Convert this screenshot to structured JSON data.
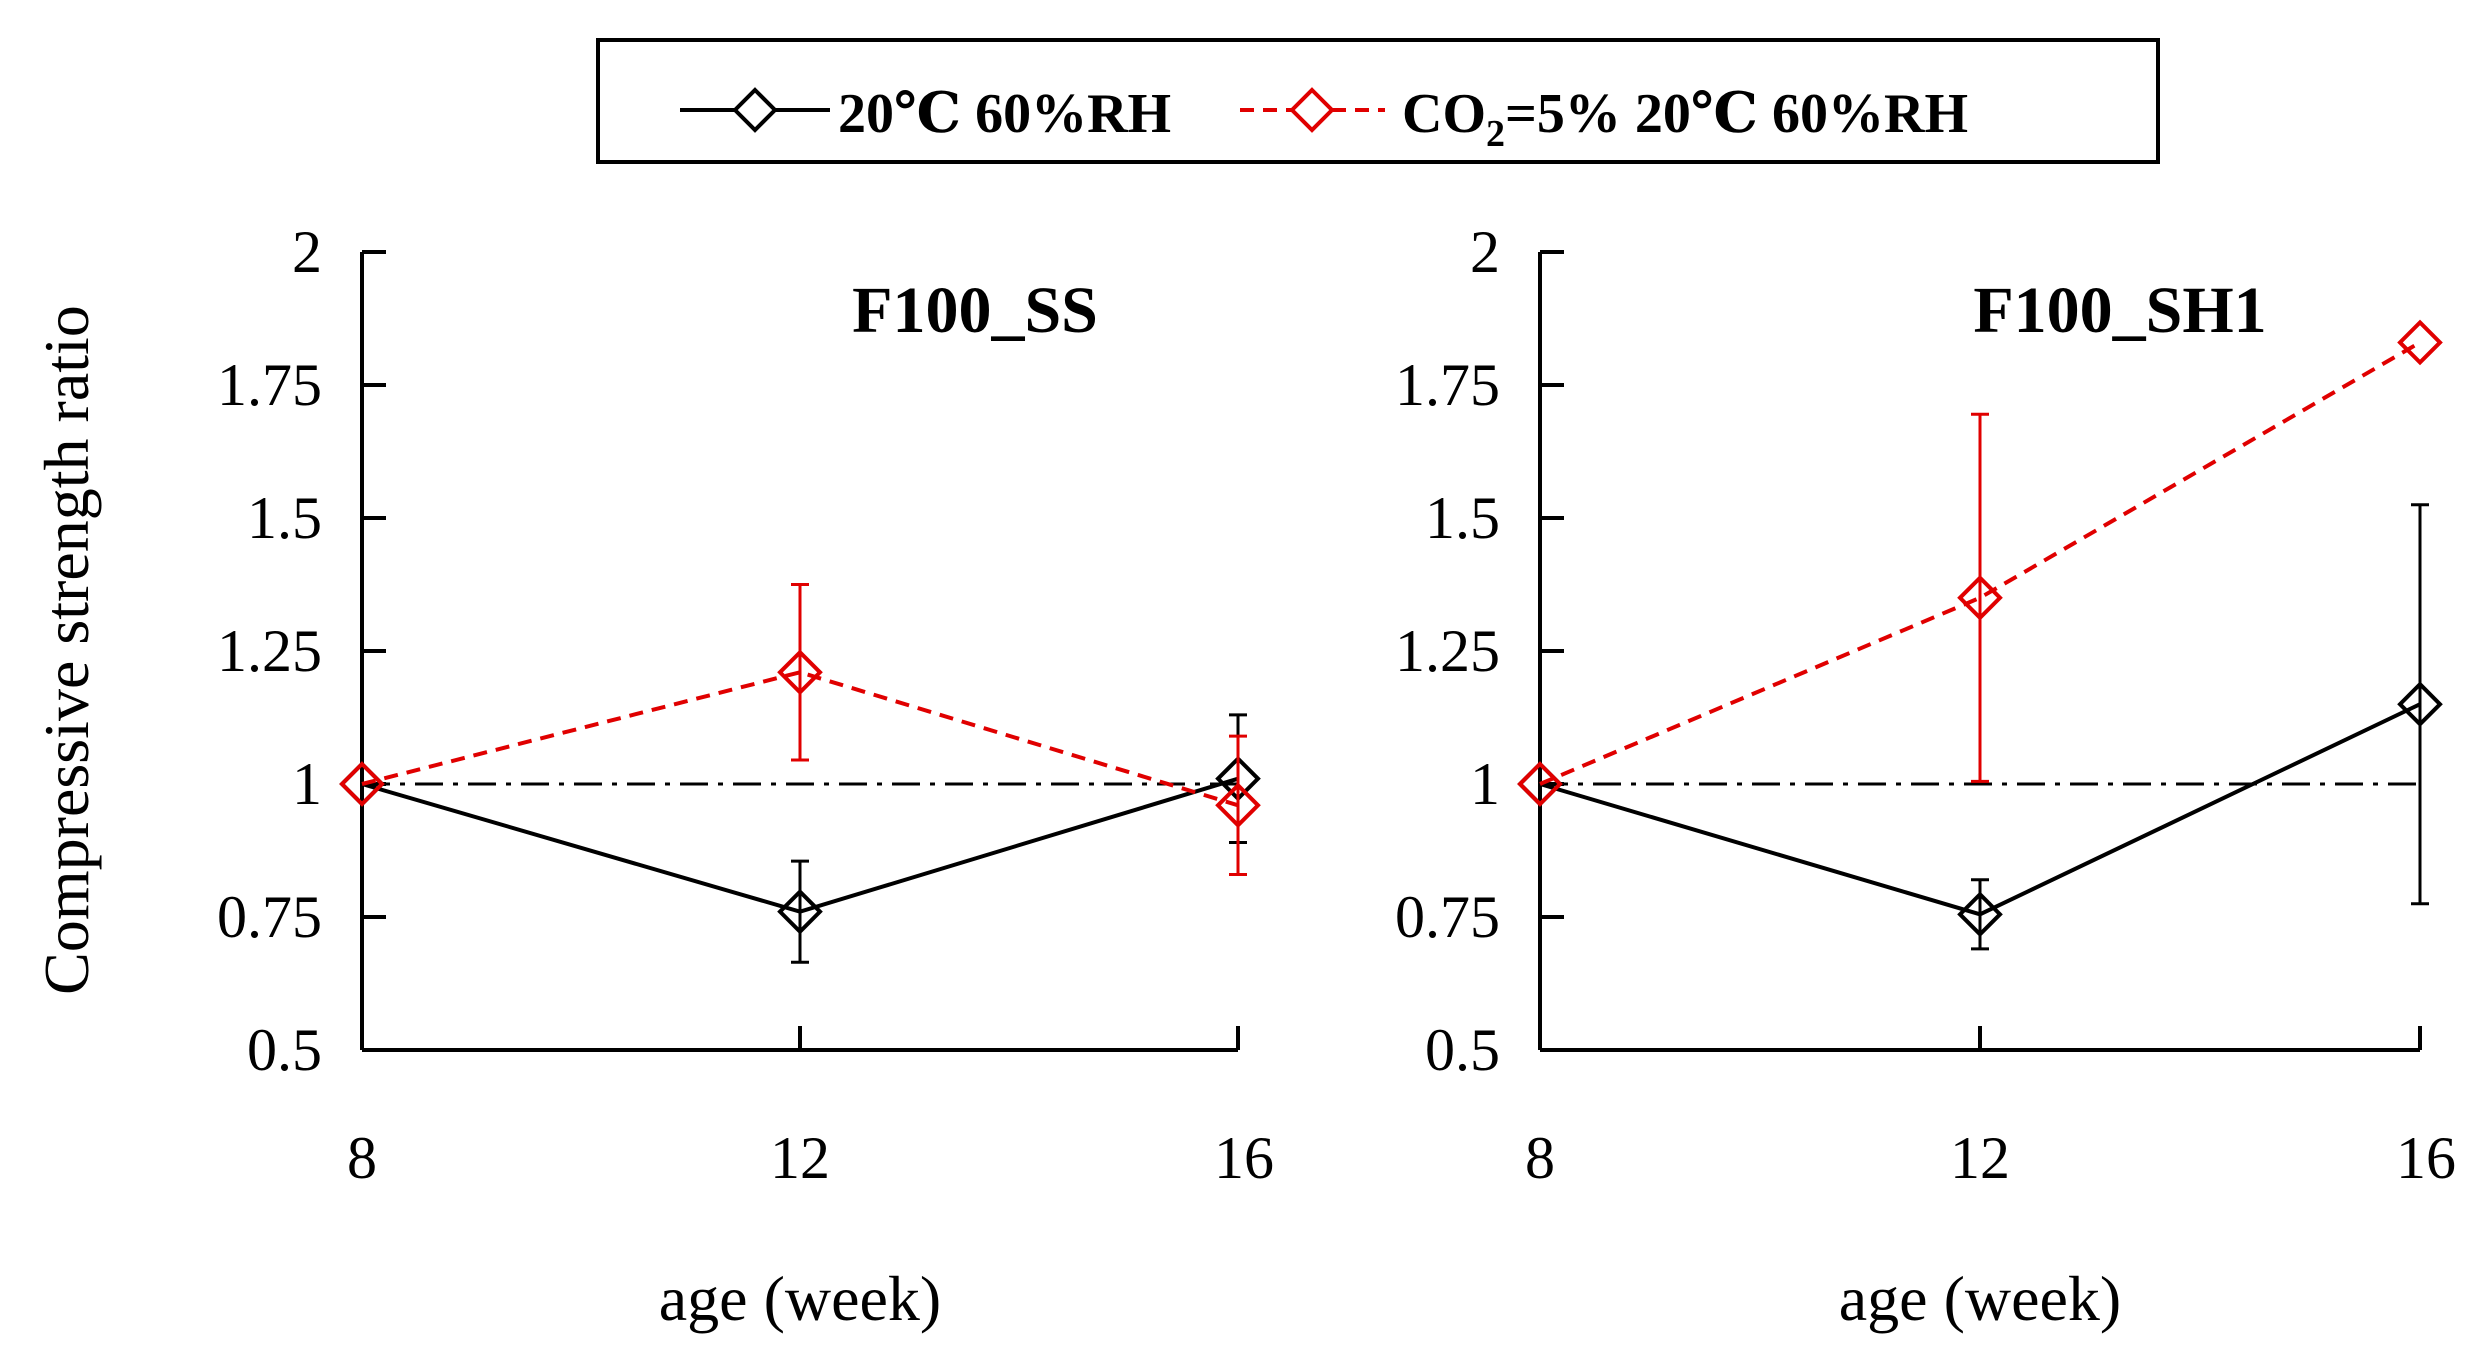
{
  "chart_data": [
    {
      "type": "line",
      "title": "F100_SS",
      "xlabel": "age (week)",
      "ylabel": "Compressive strength ratio",
      "x": [
        8,
        12,
        16
      ],
      "x_tick_labels": [
        "8",
        "12",
        "16"
      ],
      "ylim": [
        0.5,
        2
      ],
      "y_tick_labels": [
        "0.5",
        "0.75",
        "1",
        "1.25",
        "1.5",
        "1.75",
        "2"
      ],
      "reference_line": 1,
      "series": [
        {
          "name": "20℃ 60%RH",
          "color": "#000000",
          "style": "solid",
          "values": [
            1.0,
            0.76,
            1.01
          ],
          "error": [
            0,
            0.095,
            0.12
          ]
        },
        {
          "name": "CO2=5% 20℃ 60%RH",
          "color": "#e00000",
          "style": "dashed",
          "values": [
            1.0,
            1.21,
            0.96
          ],
          "error": [
            0,
            0.165,
            0.13
          ]
        }
      ]
    },
    {
      "type": "line",
      "title": "F100_SH1",
      "xlabel": "age (week)",
      "ylabel": "",
      "x": [
        8,
        12,
        16
      ],
      "x_tick_labels": [
        "8",
        "12",
        "16"
      ],
      "ylim": [
        0.5,
        2
      ],
      "y_tick_labels": [
        "0.5",
        "0.75",
        "1",
        "1.25",
        "1.5",
        "1.75",
        "2"
      ],
      "reference_line": 1,
      "series": [
        {
          "name": "20℃ 60%RH",
          "color": "#000000",
          "style": "solid",
          "values": [
            1.0,
            0.755,
            1.15
          ],
          "error": [
            0,
            0.065,
            0.375
          ]
        },
        {
          "name": "CO2=5% 20℃ 60%RH",
          "color": "#e00000",
          "style": "dashed",
          "values": [
            1.0,
            1.35,
            1.83
          ],
          "error": [
            0,
            0.345,
            0
          ]
        }
      ]
    }
  ],
  "legend": {
    "entry1": "20℃ 60%RH",
    "entry2_prefix": "CO",
    "entry2_sub": "2",
    "entry2_suffix": "=5% 20℃ 60%RH"
  }
}
